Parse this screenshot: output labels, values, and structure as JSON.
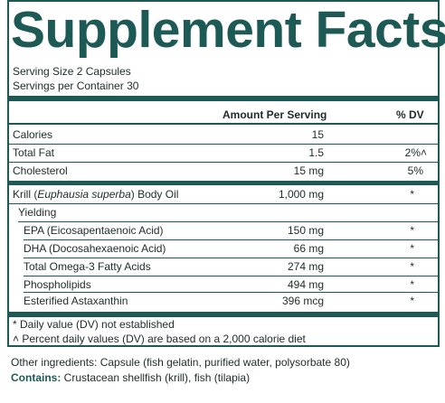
{
  "title": "Supplement Facts",
  "serving_size": "Serving Size 2 Capsules",
  "servings_per_container": "Servings per Container 30",
  "header": {
    "amount": "Amount Per Serving",
    "dv": "% DV"
  },
  "rows": [
    {
      "name": "Calories",
      "amount": "15",
      "dv": ""
    },
    {
      "name": "Total Fat",
      "amount": "1.5",
      "dv": "2%˄"
    },
    {
      "name": "Cholesterol",
      "amount": "15 mg",
      "dv": "5%"
    },
    {
      "name_pre": "Krill (",
      "name_italic": "Euphausia superba",
      "name_post": ") Body Oil",
      "amount": "1,000 mg",
      "dv": "*"
    },
    {
      "name": "Yielding",
      "amount": "",
      "dv": ""
    },
    {
      "name": "EPA (Eicosapentaenoic Acid)",
      "amount": "150 mg",
      "dv": "*"
    },
    {
      "name": "DHA (Docosahexaenoic Acid)",
      "amount": "66 mg",
      "dv": "*"
    },
    {
      "name": "Total Omega-3 Fatty Acids",
      "amount": "274 mg",
      "dv": "*"
    },
    {
      "name": "Phospholipids",
      "amount": "494 mg",
      "dv": "*"
    },
    {
      "name": "Esterified Astaxanthin",
      "amount": "396 mcg",
      "dv": "*"
    }
  ],
  "footnotes": [
    "* Daily value (DV) not established",
    "˄ Percent daily values (DV) are based on a 2,000 calorie diet"
  ],
  "other_ingredients": "Other ingredients: Capsule (fish gelatin, purified water, polysorbate 80)",
  "contains_label": "Contains:",
  "contains_text": " Crustacean shellfish (krill), fish (tilapia)",
  "colors": {
    "accent": "#1d5a55"
  }
}
